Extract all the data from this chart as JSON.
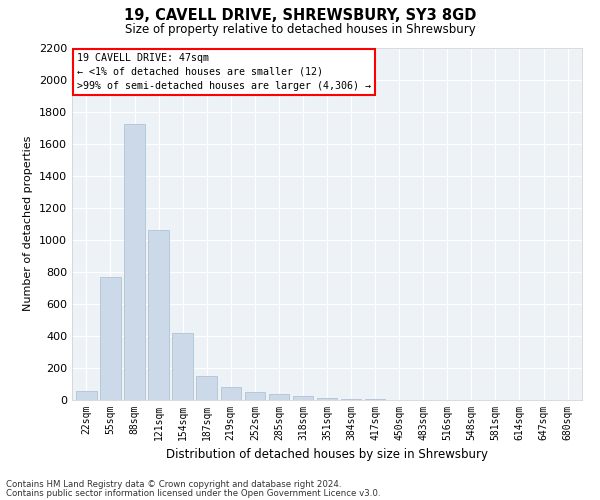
{
  "title": "19, CAVELL DRIVE, SHREWSBURY, SY3 8GD",
  "subtitle": "Size of property relative to detached houses in Shrewsbury",
  "xlabel": "Distribution of detached houses by size in Shrewsbury",
  "ylabel": "Number of detached properties",
  "bar_color": "#ccd9e8",
  "bar_edge_color": "#aabcce",
  "background_color": "#edf2f7",
  "categories": [
    "22sqm",
    "55sqm",
    "88sqm",
    "121sqm",
    "154sqm",
    "187sqm",
    "219sqm",
    "252sqm",
    "285sqm",
    "318sqm",
    "351sqm",
    "384sqm",
    "417sqm",
    "450sqm",
    "483sqm",
    "516sqm",
    "548sqm",
    "581sqm",
    "614sqm",
    "647sqm",
    "680sqm"
  ],
  "values": [
    55,
    765,
    1720,
    1060,
    420,
    150,
    80,
    48,
    38,
    28,
    15,
    8,
    5,
    3,
    2,
    1,
    0,
    0,
    0,
    0,
    0
  ],
  "ylim": [
    0,
    2200
  ],
  "yticks": [
    0,
    200,
    400,
    600,
    800,
    1000,
    1200,
    1400,
    1600,
    1800,
    2000,
    2200
  ],
  "annotation_line1": "19 CAVELL DRIVE: 47sqm",
  "annotation_line2": "← <1% of detached houses are smaller (12)",
  "annotation_line3": ">99% of semi-detached houses are larger (4,306) →",
  "footer1": "Contains HM Land Registry data © Crown copyright and database right 2024.",
  "footer2": "Contains public sector information licensed under the Open Government Licence v3.0."
}
